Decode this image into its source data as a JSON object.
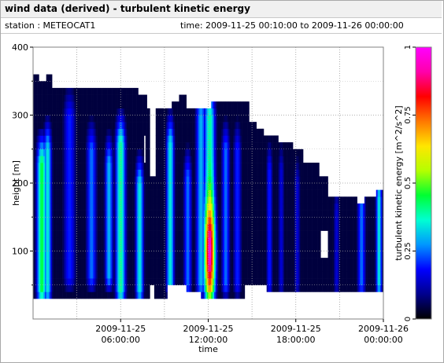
{
  "header": {
    "title": "wind data (derived) - turbulent kinetic energy",
    "station": "station : METEOCAT1",
    "time_range": "time: 2009-11-25 00:10:00 to 2009-11-26 00:00:00"
  },
  "chart_data": {
    "type": "heatmap",
    "xlabel": "time",
    "ylabel": "height [m]",
    "colorbar_label": "turbulent kinetic energy [m^2/s^2]",
    "x_ticks": [
      {
        "h": 6,
        "line1": "2009-11-25",
        "line2": "06:00:00"
      },
      {
        "h": 12,
        "line1": "2009-11-25",
        "line2": "12:00:00"
      },
      {
        "h": 18,
        "line1": "2009-11-25",
        "line2": "18:00:00"
      },
      {
        "h": 24,
        "line1": "2009-11-26",
        "line2": "00:00:00"
      }
    ],
    "y_ticks": [
      100,
      200,
      300,
      400
    ],
    "xlim_hours": [
      0,
      24
    ],
    "ylim": [
      0,
      400
    ],
    "clim": [
      0,
      1
    ],
    "colorbar_ticks": [
      {
        "v": 0,
        "label": "0"
      },
      {
        "v": 0.25,
        "label": "0.25"
      },
      {
        "v": 0.5,
        "label": "0.5"
      },
      {
        "v": 0.75,
        "label": "0.75"
      },
      {
        "v": 1,
        "label": "1"
      }
    ],
    "colormap": [
      "#000000",
      "#00008c",
      "#0000ff",
      "#0096ff",
      "#00ffd2",
      "#00ff32",
      "#b4ff00",
      "#ffe600",
      "#ff7800",
      "#ff0000",
      "#ff00aa",
      "#ff00ff"
    ],
    "grid": true,
    "data_top_height_m": [
      {
        "t": 0.0,
        "h": 363
      },
      {
        "t": 0.4,
        "h": 350
      },
      {
        "t": 0.9,
        "h": 363
      },
      {
        "t": 1.3,
        "h": 335
      },
      {
        "t": 7.2,
        "h": 328
      },
      {
        "t": 7.8,
        "h": 310
      },
      {
        "t": 8.2,
        "h": 310
      },
      {
        "t": 8.2,
        "h": 305
      },
      {
        "t": 9.5,
        "h": 320
      },
      {
        "t": 10.0,
        "h": 325
      },
      {
        "t": 10.5,
        "h": 315
      },
      {
        "t": 10.5,
        "h": 306
      },
      {
        "t": 12.2,
        "h": 318
      },
      {
        "t": 12.7,
        "h": 322
      },
      {
        "t": 14.8,
        "h": 288
      },
      {
        "t": 15.3,
        "h": 275
      },
      {
        "t": 15.8,
        "h": 268
      },
      {
        "t": 16.8,
        "h": 262
      },
      {
        "t": 17.8,
        "h": 252
      },
      {
        "t": 18.5,
        "h": 226
      },
      {
        "t": 19.6,
        "h": 208
      },
      {
        "t": 20.2,
        "h": 178
      },
      {
        "t": 21.5,
        "h": 175
      },
      {
        "t": 22.2,
        "h": 169
      },
      {
        "t": 22.7,
        "h": 178
      },
      {
        "t": 23.5,
        "h": 185
      },
      {
        "t": 24.0,
        "h": 185
      }
    ],
    "data_bottom_height_m": [
      {
        "t": 0.0,
        "h": 35
      },
      {
        "t": 8.0,
        "h": 52
      },
      {
        "t": 8.3,
        "h": 35
      },
      {
        "t": 9.2,
        "h": 48
      },
      {
        "t": 10.5,
        "h": 38
      },
      {
        "t": 11.5,
        "h": 35
      },
      {
        "t": 14.5,
        "h": 48
      },
      {
        "t": 16.0,
        "h": 40
      },
      {
        "t": 24.0,
        "h": 35
      }
    ],
    "gaps": [
      {
        "t0": 8.0,
        "t1": 8.35,
        "h0": 215,
        "h1": 310
      },
      {
        "t0": 7.55,
        "t1": 7.7,
        "h0": 235,
        "h1": 265
      },
      {
        "t0": 19.75,
        "t1": 20.2,
        "h0": 90,
        "h1": 125
      }
    ],
    "bands": [
      {
        "t": 0.6,
        "w": 0.5,
        "peak": 0.45,
        "hmin": 40,
        "hmax": 230
      },
      {
        "t": 1.0,
        "w": 0.4,
        "peak": 0.35,
        "hmin": 40,
        "hmax": 250
      },
      {
        "t": 2.5,
        "w": 0.6,
        "peak": 0.2,
        "hmin": 60,
        "hmax": 300
      },
      {
        "t": 4.0,
        "w": 0.5,
        "peak": 0.25,
        "hmin": 60,
        "hmax": 250
      },
      {
        "t": 5.2,
        "w": 0.4,
        "peak": 0.3,
        "hmin": 60,
        "hmax": 230
      },
      {
        "t": 6.0,
        "w": 0.5,
        "peak": 0.4,
        "hmin": 40,
        "hmax": 260
      },
      {
        "t": 7.3,
        "w": 0.4,
        "peak": 0.35,
        "hmin": 40,
        "hmax": 200
      },
      {
        "t": 9.4,
        "w": 0.4,
        "peak": 0.35,
        "hmin": 50,
        "hmax": 260
      },
      {
        "t": 10.6,
        "w": 0.4,
        "peak": 0.25,
        "hmin": 50,
        "hmax": 210
      },
      {
        "t": 11.5,
        "w": 0.5,
        "peak": 0.3,
        "hmin": 50,
        "hmax": 300
      },
      {
        "t": 12.1,
        "w": 0.55,
        "peak": 0.72,
        "hmin": 40,
        "hmax": 300,
        "hot_center": 100,
        "hot_peak": 0.78
      },
      {
        "t": 13.2,
        "w": 0.4,
        "peak": 0.25,
        "hmin": 50,
        "hmax": 250
      },
      {
        "t": 14.0,
        "w": 0.4,
        "peak": 0.2,
        "hmin": 50,
        "hmax": 250
      },
      {
        "t": 16.2,
        "w": 0.3,
        "peak": 0.2,
        "hmin": 50,
        "hmax": 220
      },
      {
        "t": 17.0,
        "w": 0.3,
        "peak": 0.15,
        "hmin": 50,
        "hmax": 220
      },
      {
        "t": 18.1,
        "w": 0.3,
        "peak": 0.15,
        "hmin": 50,
        "hmax": 200
      },
      {
        "t": 20.8,
        "w": 0.3,
        "peak": 0.15,
        "hmin": 50,
        "hmax": 160
      },
      {
        "t": 22.5,
        "w": 0.4,
        "peak": 0.25,
        "hmin": 50,
        "hmax": 170
      },
      {
        "t": 23.7,
        "w": 0.3,
        "peak": 0.35,
        "hmin": 50,
        "hmax": 180
      }
    ],
    "background_level": 0.04
  }
}
